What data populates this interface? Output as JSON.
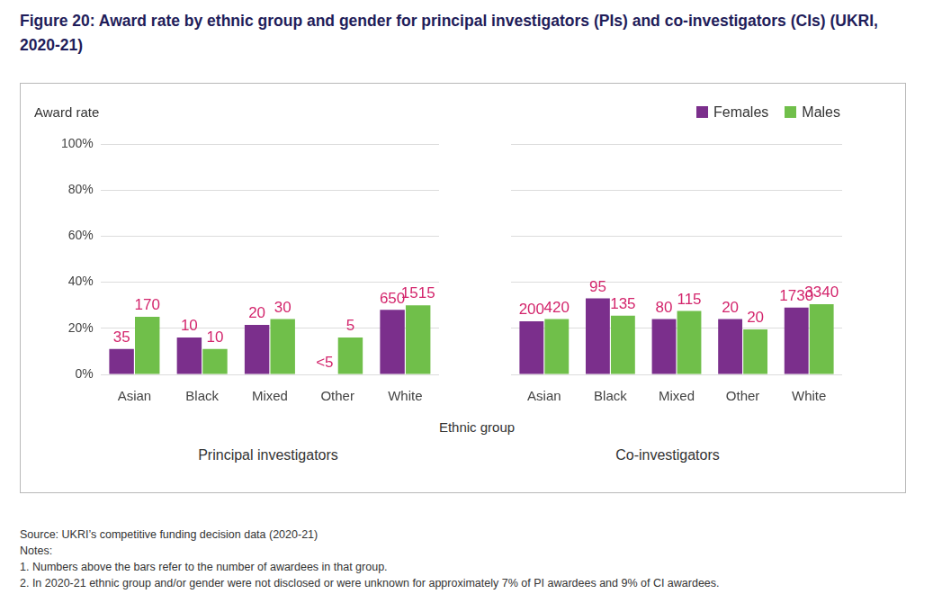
{
  "title": "Figure 20: Award rate by ethnic group and gender for principal investigators (PIs) and co-investigators (CIs) (UKRI, 2020-21)",
  "x_label": "Ethnic group",
  "source": "Source: UKRI’s competitive funding decision data (2020-21)",
  "notes": [
    "Notes:",
    "1. Numbers above the bars refer to the number of awardees in that group.",
    "2. In 2020-21 ethnic group and/or gender were not disclosed or were unknown for approximately 7% of PI awardees and 9% of CI awardees."
  ],
  "chart_data": [
    {
      "type": "bar",
      "subtitle": "Principal investigators",
      "y_label": "Award rate",
      "categories": [
        "Asian",
        "Black",
        "Mixed",
        "Other",
        "White"
      ],
      "series": [
        {
          "name": "Females",
          "color": "#7b2f8c",
          "values": [
            11,
            16,
            21.5,
            null,
            28
          ],
          "awardees": [
            35,
            10,
            20,
            "<5",
            650
          ]
        },
        {
          "name": "Males",
          "color": "#70bf4a",
          "values": [
            25,
            11,
            24,
            16,
            30
          ],
          "awardees": [
            170,
            10,
            30,
            5,
            1515
          ]
        }
      ],
      "ylim": [
        0,
        100
      ],
      "yticks": [
        {
          "value": 0,
          "label": "0%"
        },
        {
          "value": 20,
          "label": "20%"
        },
        {
          "value": 40,
          "label": "40%"
        },
        {
          "value": 60,
          "label": "60%"
        },
        {
          "value": 80,
          "label": "80%"
        },
        {
          "value": 100,
          "label": "100%"
        }
      ],
      "grid": true
    },
    {
      "type": "bar",
      "subtitle": "Co-investigators",
      "categories": [
        "Asian",
        "Black",
        "Mixed",
        "Other",
        "White"
      ],
      "series": [
        {
          "name": "Females",
          "color": "#7b2f8c",
          "values": [
            23,
            33,
            24,
            24,
            29
          ],
          "awardees": [
            200,
            95,
            80,
            20,
            1730
          ]
        },
        {
          "name": "Males",
          "color": "#70bf4a",
          "values": [
            24,
            25.5,
            27.5,
            19.5,
            30.5
          ],
          "awardees": [
            420,
            135,
            115,
            20,
            3340
          ]
        }
      ],
      "ylim": [
        0,
        100
      ],
      "yticks": [
        {
          "value": 0,
          "label": "0%"
        },
        {
          "value": 20,
          "label": "20%"
        },
        {
          "value": 40,
          "label": "40%"
        },
        {
          "value": 60,
          "label": "60%"
        },
        {
          "value": 80,
          "label": "80%"
        },
        {
          "value": 100,
          "label": "100%"
        }
      ],
      "grid": true,
      "legend": "top right",
      "tick_labels": "x"
    }
  ]
}
